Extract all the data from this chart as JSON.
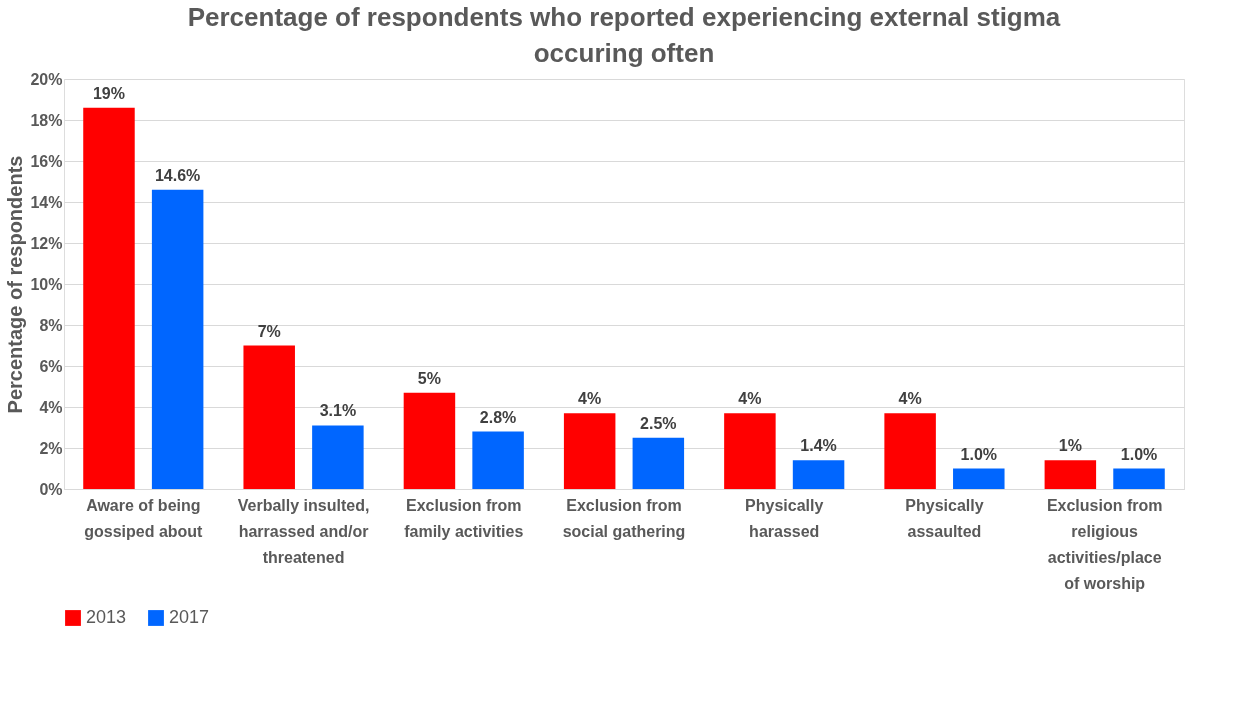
{
  "chart_data": {
    "type": "bar",
    "title": "Percentage of respondents who reported experiencing external stigma occuring often",
    "ylabel": "Percentage of respondents",
    "categories": [
      "Aware of being gossiped about",
      "Verbally insulted, harrassed and/or threatened",
      "Exclusion from family activities",
      "Exclusion from social gathering",
      "Physically harassed",
      "Physically assaulted",
      "Exclusion from religious activities/place of worship"
    ],
    "series": [
      {
        "name": "2013",
        "color": "#ff0000",
        "values": [
          18.6,
          7.0,
          4.7,
          3.7,
          3.7,
          3.7,
          1.4
        ],
        "value_labels": [
          "19%",
          "7%",
          "5%",
          "4%",
          "4%",
          "4%",
          "1%"
        ]
      },
      {
        "name": "2017",
        "color": "#0066ff",
        "values": [
          14.6,
          3.1,
          2.8,
          2.5,
          1.4,
          1.0,
          1.0
        ],
        "value_labels": [
          "14.6%",
          "3.1%",
          "2.8%",
          "2.5%",
          "1.4%",
          "1.0%",
          "1.0%"
        ]
      }
    ],
    "ylim": [
      0,
      20
    ],
    "yticks": [
      {
        "value": 0,
        "label": "0%"
      },
      {
        "value": 2,
        "label": "2%"
      },
      {
        "value": 4,
        "label": "4%"
      },
      {
        "value": 6,
        "label": "6%"
      },
      {
        "value": 8,
        "label": "8%"
      },
      {
        "value": 10,
        "label": "10%"
      },
      {
        "value": 12,
        "label": "12%"
      },
      {
        "value": 14,
        "label": "14%"
      },
      {
        "value": 16,
        "label": "16%"
      },
      {
        "value": 18,
        "label": "18%"
      },
      {
        "value": 20,
        "label": "20%"
      }
    ],
    "grid": "y",
    "legend": "bottom"
  }
}
